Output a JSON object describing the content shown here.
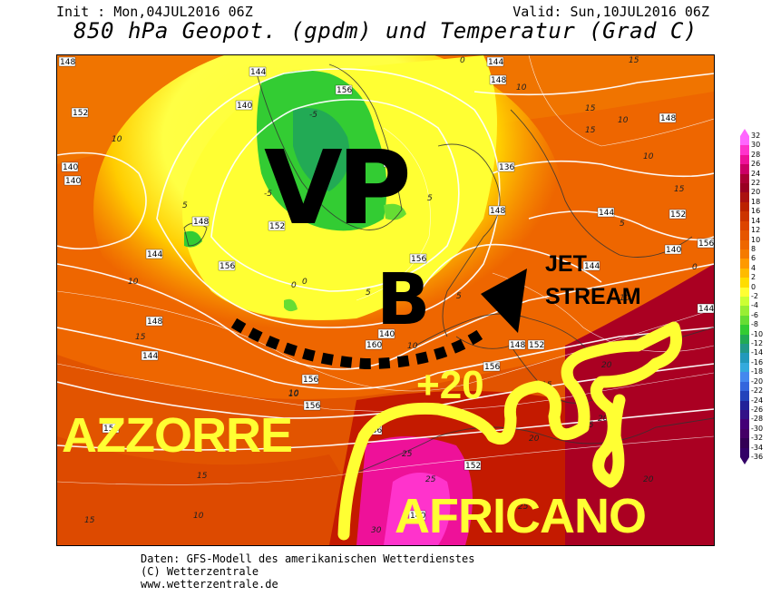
{
  "header": {
    "init": "Init : Mon,04JUL2016 06Z",
    "valid": "Valid: Sun,10JUL2016 06Z",
    "title": "850 hPa Geopot. (gpdm) und Temperatur (Grad C)"
  },
  "overlay": {
    "vp": "VP",
    "b": "B",
    "jet_line1": "JET",
    "jet_line2": "STREAM",
    "plus20": "+20",
    "azzorre": "AZZORRE",
    "africano": "AFRICANO"
  },
  "legend": {
    "labels": [
      "32",
      "30",
      "28",
      "26",
      "24",
      "22",
      "20",
      "18",
      "16",
      "14",
      "12",
      "10",
      "8",
      "6",
      "4",
      "2",
      "0",
      "-2",
      "-4",
      "-6",
      "-8",
      "-10",
      "-12",
      "-14",
      "-16",
      "-18",
      "-20",
      "-22",
      "-24",
      "-26",
      "-28",
      "-30",
      "-32",
      "-34",
      "-36"
    ],
    "colors": [
      "#ff66ff",
      "#ff33cc",
      "#ee1199",
      "#cc0066",
      "#aa0033",
      "#990022",
      "#aa1111",
      "#bb2200",
      "#cc3300",
      "#dd4400",
      "#e65500",
      "#ee6600",
      "#f57a00",
      "#ff9900",
      "#ffbb00",
      "#ffdd00",
      "#ffff33",
      "#ccff33",
      "#99ee33",
      "#66dd33",
      "#33cc33",
      "#22aa55",
      "#229988",
      "#2299bb",
      "#33aadd",
      "#4488ee",
      "#3366dd",
      "#2244bb",
      "#222299",
      "#331188",
      "#440077",
      "#440066",
      "#330055",
      "#330066"
    ]
  },
  "map_labels": {
    "geopot": [
      "148",
      "144",
      "140",
      "152",
      "156",
      "144",
      "148",
      "140",
      "152",
      "136",
      "140",
      "148",
      "144",
      "152",
      "156",
      "156",
      "148",
      "144",
      "140",
      "160",
      "156",
      "156",
      "152",
      "136",
      "140",
      "148",
      "144",
      "144",
      "140",
      "148",
      "152",
      "156",
      "152",
      "148",
      "144",
      "152",
      "156"
    ],
    "temp": [
      "10",
      "15",
      "5",
      "0",
      "10",
      "-5",
      "-5",
      "5",
      "10",
      "15",
      "10",
      "5",
      "0",
      "10",
      "15",
      "15",
      "10",
      "5",
      "0",
      "20",
      "25",
      "20",
      "15",
      "25",
      "30",
      "25",
      "20",
      "15",
      "10",
      "15",
      "20",
      "15",
      "10",
      "5",
      "0",
      "10",
      "15",
      "10"
    ]
  },
  "footer": {
    "line1": "Daten: GFS-Modell des amerikanischen Wetterdienstes",
    "line2": "(C) Wetterzentrale",
    "line3": "www.wetterzentrale.de"
  }
}
